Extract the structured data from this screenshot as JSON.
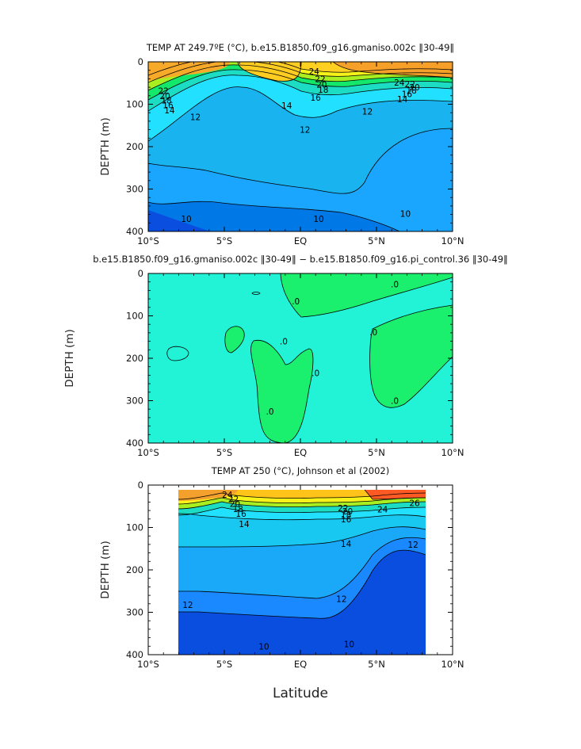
{
  "figure": {
    "xaxis_label": "Latitude",
    "x_tick_labels": [
      "10°S",
      "5°S",
      "EQ",
      "5°N",
      "10°N"
    ],
    "y_tick_labels": [
      "0",
      "100",
      "200",
      "300",
      "400"
    ]
  },
  "chart_data": [
    {
      "type": "heatmap",
      "title": "TEMP AT 249.7ºE (°C), b.e15.B1850.f09_g16.gmaniso.002c ‖30-49‖",
      "xlabel": "Latitude",
      "ylabel": "DEPTH (m)",
      "xlim": [
        -10,
        10
      ],
      "ylim": [
        400,
        0
      ],
      "x_ticks": [
        -10,
        -5,
        0,
        5,
        10
      ],
      "y_ticks": [
        0,
        100,
        200,
        300,
        400
      ],
      "data_extent": [
        -10,
        10
      ],
      "contour_labels": [
        {
          "text": "22",
          "x": -9.0,
          "y": 68
        },
        {
          "text": "20",
          "x": -8.9,
          "y": 80
        },
        {
          "text": "18",
          "x": -8.8,
          "y": 91
        },
        {
          "text": "16",
          "x": -8.7,
          "y": 102
        },
        {
          "text": "14",
          "x": -8.6,
          "y": 114
        },
        {
          "text": "12",
          "x": -6.9,
          "y": 130
        },
        {
          "text": "24",
          "x": 0.9,
          "y": 22
        },
        {
          "text": "22",
          "x": 1.3,
          "y": 40
        },
        {
          "text": "20",
          "x": 1.4,
          "y": 53
        },
        {
          "text": "18",
          "x": 1.5,
          "y": 65
        },
        {
          "text": "16",
          "x": 1.0,
          "y": 84
        },
        {
          "text": "14",
          "x": -0.9,
          "y": 103
        },
        {
          "text": "12",
          "x": 0.3,
          "y": 160
        },
        {
          "text": "12",
          "x": 4.4,
          "y": 117
        },
        {
          "text": "24",
          "x": 6.5,
          "y": 49
        },
        {
          "text": "22",
          "x": 7.2,
          "y": 52
        },
        {
          "text": "20",
          "x": 7.5,
          "y": 60
        },
        {
          "text": "18",
          "x": 7.3,
          "y": 67
        },
        {
          "text": "16",
          "x": 7.0,
          "y": 76
        },
        {
          "text": "14",
          "x": 6.7,
          "y": 88
        },
        {
          "text": "10",
          "x": -7.5,
          "y": 370
        },
        {
          "text": "10",
          "x": 1.2,
          "y": 370
        },
        {
          "text": "10",
          "x": 6.9,
          "y": 358
        }
      ]
    },
    {
      "type": "heatmap",
      "title": "b.e15.B1850.f09_g16.gmaniso.002c ‖30-49‖ − b.e15.B1850.f09_g16.pi_control.36 ‖30-49‖",
      "xlabel": "Latitude",
      "ylabel": "DEPTH (m)",
      "xlim": [
        -10,
        10
      ],
      "ylim": [
        400,
        0
      ],
      "x_ticks": [
        -10,
        -5,
        0,
        5,
        10
      ],
      "y_ticks": [
        0,
        100,
        200,
        300,
        400
      ],
      "data_extent": [
        -10,
        10
      ],
      "contour_labels": [
        {
          "text": ".0",
          "x": -0.3,
          "y": 65
        },
        {
          "text": ".0",
          "x": 6.2,
          "y": 25
        },
        {
          "text": ".0",
          "x": -1.1,
          "y": 160
        },
        {
          "text": ".0",
          "x": 1.0,
          "y": 235
        },
        {
          "text": ".0",
          "x": -2.0,
          "y": 325
        },
        {
          "text": ".0",
          "x": 4.8,
          "y": 138
        },
        {
          "text": ".0",
          "x": 6.2,
          "y": 300
        }
      ]
    },
    {
      "type": "heatmap",
      "title": "TEMP AT 250 (°C), Johnson et al (2002)",
      "xlabel": "Latitude",
      "ylabel": "DEPTH (m)",
      "xlim": [
        -10,
        10
      ],
      "ylim": [
        400,
        0
      ],
      "x_ticks": [
        -10,
        -5,
        0,
        5,
        10
      ],
      "y_ticks": [
        0,
        100,
        200,
        300,
        400
      ],
      "data_extent": [
        -8,
        8.2
      ],
      "contour_labels": [
        {
          "text": "24",
          "x": -4.8,
          "y": 22
        },
        {
          "text": "22",
          "x": -4.4,
          "y": 33
        },
        {
          "text": "20",
          "x": -4.3,
          "y": 44
        },
        {
          "text": "18",
          "x": -4.1,
          "y": 56
        },
        {
          "text": "16",
          "x": -3.9,
          "y": 67
        },
        {
          "text": "14",
          "x": -3.7,
          "y": 92
        },
        {
          "text": "22",
          "x": 2.8,
          "y": 54
        },
        {
          "text": "20",
          "x": 3.1,
          "y": 62
        },
        {
          "text": "18",
          "x": 3.0,
          "y": 70
        },
        {
          "text": "16",
          "x": 3.0,
          "y": 80
        },
        {
          "text": "24",
          "x": 5.4,
          "y": 57
        },
        {
          "text": "26",
          "x": 7.5,
          "y": 42
        },
        {
          "text": "14",
          "x": 3.0,
          "y": 138
        },
        {
          "text": "12",
          "x": 7.4,
          "y": 140
        },
        {
          "text": "12",
          "x": -7.4,
          "y": 282
        },
        {
          "text": "12",
          "x": 2.7,
          "y": 268
        },
        {
          "text": "10",
          "x": -2.4,
          "y": 380
        },
        {
          "text": "10",
          "x": 3.2,
          "y": 375
        }
      ]
    }
  ]
}
